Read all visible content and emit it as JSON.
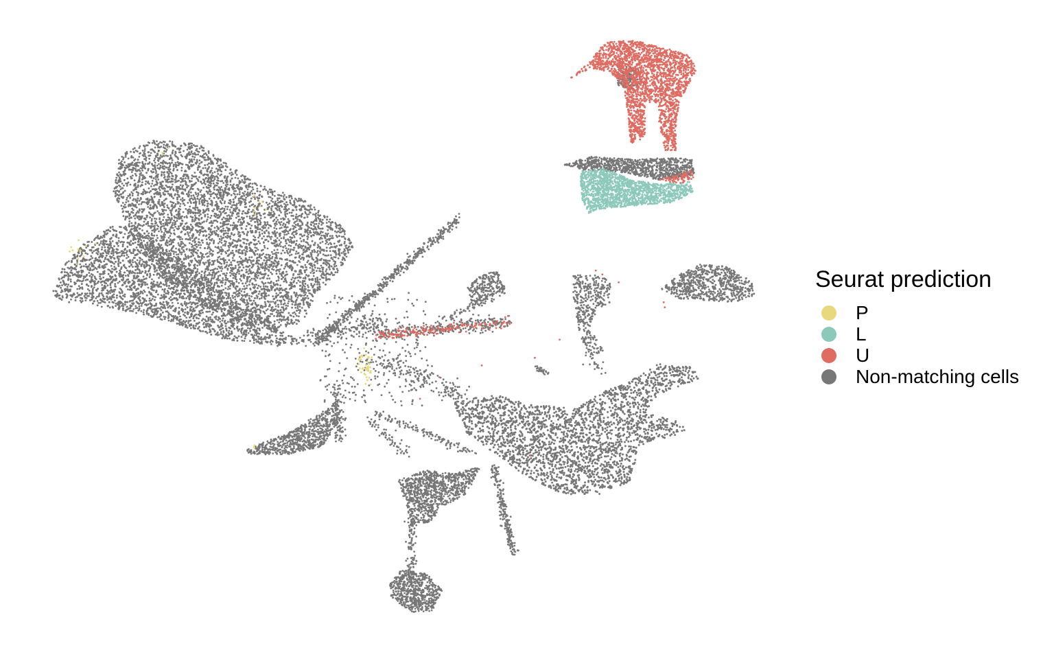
{
  "chart_data": {
    "type": "scatter",
    "title": "",
    "xlabel": "",
    "ylabel": "",
    "axes_visible": false,
    "grid": false,
    "legend_position": "right",
    "legend_title": "Seurat prediction",
    "categories": [
      "P",
      "L",
      "U",
      "Non-matching cells"
    ],
    "colors": {
      "P": "#E8D97E",
      "L": "#8DC9BA",
      "U": "#E06B61",
      "Non-matching cells": "#777777"
    },
    "series": [
      {
        "name": "P",
        "description_color": "#E8D97E"
      },
      {
        "name": "L",
        "description_color": "#8DC9BA"
      },
      {
        "name": "U",
        "description_color": "#E06B61"
      },
      {
        "name": "Non-matching cells",
        "description_color": "#777777"
      }
    ]
  },
  "legend": {
    "title": "Seurat prediction",
    "items": [
      {
        "label": "P",
        "color": "#E8D97E"
      },
      {
        "label": "L",
        "color": "#8DC9BA"
      },
      {
        "label": "U",
        "color": "#E06B61"
      },
      {
        "label": "Non-matching cells",
        "color": "#777777"
      }
    ]
  }
}
